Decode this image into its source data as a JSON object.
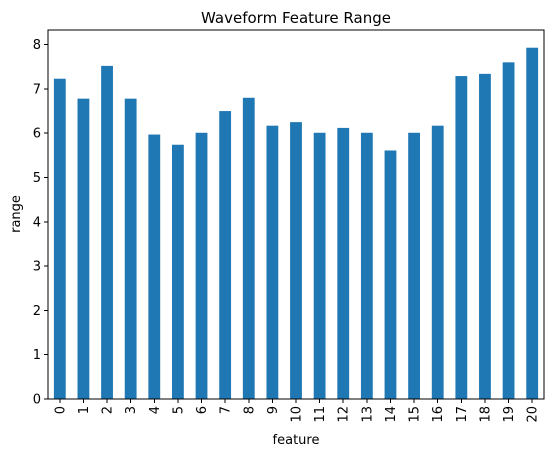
{
  "chart_data": {
    "type": "bar",
    "title": "Waveform Feature Range",
    "xlabel": "feature",
    "ylabel": "range",
    "categories": [
      "0",
      "1",
      "2",
      "3",
      "4",
      "5",
      "6",
      "7",
      "8",
      "9",
      "10",
      "11",
      "12",
      "13",
      "14",
      "15",
      "16",
      "17",
      "18",
      "19",
      "20"
    ],
    "values": [
      7.23,
      6.78,
      7.52,
      6.78,
      5.97,
      5.74,
      6.01,
      6.5,
      6.8,
      6.17,
      6.25,
      6.01,
      6.12,
      6.01,
      5.61,
      6.01,
      6.17,
      7.29,
      7.34,
      7.6,
      7.93
    ],
    "yticks": [
      0,
      1,
      2,
      3,
      4,
      5,
      6,
      7,
      8
    ],
    "ylim": [
      0,
      8.33
    ],
    "grid": false,
    "bar_color": "#1f77b4"
  }
}
